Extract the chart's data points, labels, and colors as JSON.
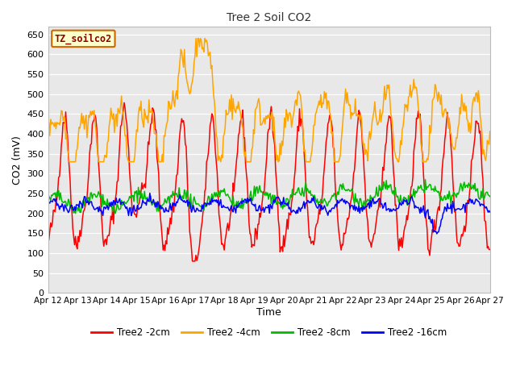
{
  "title": "Tree 2 Soil CO2",
  "xlabel": "Time",
  "ylabel": "CO2 (mV)",
  "ylim": [
    0,
    670
  ],
  "yticks": [
    0,
    50,
    100,
    150,
    200,
    250,
    300,
    350,
    400,
    450,
    500,
    550,
    600,
    650
  ],
  "line_colors": {
    "2cm": "#ff0000",
    "4cm": "#ffa500",
    "8cm": "#00bb00",
    "16cm": "#0000ff"
  },
  "legend_label": "TZ_soilco2",
  "series_labels": [
    "Tree2 -2cm",
    "Tree2 -4cm",
    "Tree2 -8cm",
    "Tree2 -16cm"
  ],
  "x_tick_labels": [
    "Apr 12",
    "Apr 13",
    "Apr 14",
    "Apr 15",
    "Apr 16",
    "Apr 17",
    "Apr 18",
    "Apr 19",
    "Apr 20",
    "Apr 21",
    "Apr 22",
    "Apr 23",
    "Apr 24",
    "Apr 25",
    "Apr 26",
    "Apr 27"
  ],
  "figsize": [
    6.4,
    4.8
  ],
  "dpi": 100,
  "fig_bg": "#ffffff",
  "plot_bg": "#e8e8e8",
  "grid_color": "#ffffff",
  "n_points": 500,
  "seed": 42
}
